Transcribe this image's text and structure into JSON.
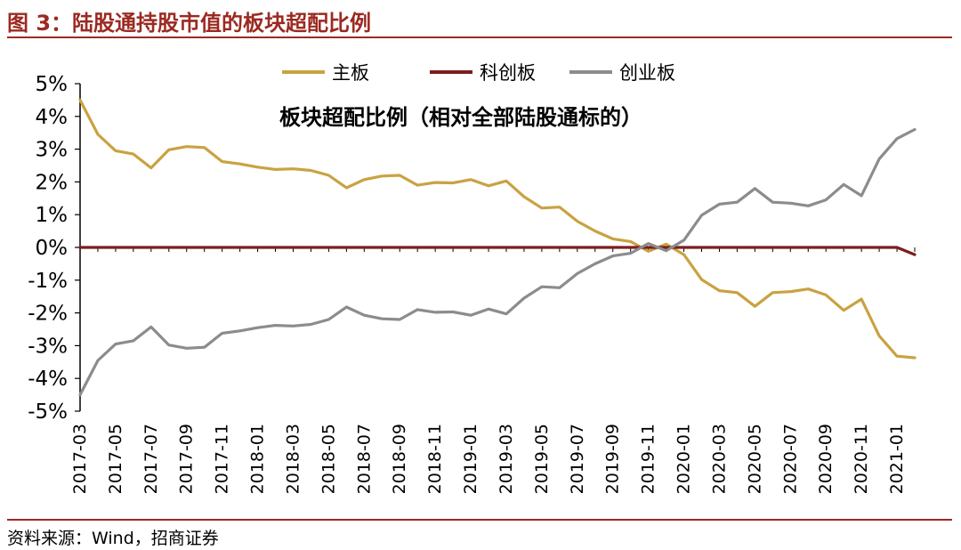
{
  "figure": {
    "title": "图 3：陆股通持股市值的板块超配比例",
    "source": "资料来源：Wind，招商证券"
  },
  "chart_data": {
    "type": "line",
    "title": "板块超配比例（相对全部陆股通标的）",
    "xlabel": "",
    "ylabel": "",
    "ylim": [
      -5,
      5
    ],
    "yticks": [
      "5%",
      "4%",
      "3%",
      "2%",
      "1%",
      "0%",
      "-1%",
      "-2%",
      "-3%",
      "-4%",
      "-5%"
    ],
    "grid": false,
    "legend_position": "top-center",
    "x": [
      "2017-03",
      "2017-04",
      "2017-05",
      "2017-06",
      "2017-07",
      "2017-08",
      "2017-09",
      "2017-10",
      "2017-11",
      "2017-12",
      "2018-01",
      "2018-02",
      "2018-03",
      "2018-04",
      "2018-05",
      "2018-06",
      "2018-07",
      "2018-08",
      "2018-09",
      "2018-10",
      "2018-11",
      "2018-12",
      "2019-01",
      "2019-02",
      "2019-03",
      "2019-04",
      "2019-05",
      "2019-06",
      "2019-07",
      "2019-08",
      "2019-09",
      "2019-10",
      "2019-11",
      "2019-12",
      "2020-01",
      "2020-02",
      "2020-03",
      "2020-04",
      "2020-05",
      "2020-06",
      "2020-07",
      "2020-08",
      "2020-09",
      "2020-10",
      "2020-11",
      "2020-12",
      "2021-01",
      "2021-02"
    ],
    "xtick_labels": [
      "2017-03",
      "2017-05",
      "2017-07",
      "2017-09",
      "2017-11",
      "2018-01",
      "2018-03",
      "2018-05",
      "2018-07",
      "2018-09",
      "2018-11",
      "2019-01",
      "2019-03",
      "2019-05",
      "2019-07",
      "2019-09",
      "2019-11",
      "2020-01",
      "2020-03",
      "2020-05",
      "2020-07",
      "2020-09",
      "2020-11",
      "2021-01"
    ],
    "series": [
      {
        "name": "主板",
        "color": "#C9A241",
        "values": [
          4.5,
          3.45,
          2.95,
          2.85,
          2.43,
          2.98,
          3.08,
          3.05,
          2.62,
          2.55,
          2.45,
          2.38,
          2.4,
          2.35,
          2.2,
          1.82,
          2.07,
          2.18,
          2.2,
          1.9,
          1.98,
          1.97,
          2.07,
          1.88,
          2.03,
          1.55,
          1.2,
          1.23,
          0.8,
          0.5,
          0.26,
          0.18,
          -0.12,
          0.1,
          -0.22,
          -0.98,
          -1.32,
          -1.38,
          -1.8,
          -1.38,
          -1.35,
          -1.27,
          -1.45,
          -1.92,
          -1.58,
          -2.7,
          -3.32,
          -3.37
        ]
      },
      {
        "name": "科创板",
        "color": "#7B1E1E",
        "values": [
          0,
          0,
          0,
          0,
          0,
          0,
          0,
          0,
          0,
          0,
          0,
          0,
          0,
          0,
          0,
          0,
          0,
          0,
          0,
          0,
          0,
          0,
          0,
          0,
          0,
          0,
          0,
          0,
          0,
          0,
          0,
          0,
          0,
          0,
          0,
          0,
          0,
          0,
          0,
          0,
          0,
          0,
          0,
          0,
          0,
          0,
          0,
          -0.22
        ]
      },
      {
        "name": "创业板",
        "color": "#8C8C8C",
        "values": [
          -4.5,
          -3.45,
          -2.95,
          -2.85,
          -2.43,
          -2.98,
          -3.08,
          -3.05,
          -2.62,
          -2.55,
          -2.45,
          -2.38,
          -2.4,
          -2.35,
          -2.2,
          -1.82,
          -2.07,
          -2.18,
          -2.2,
          -1.9,
          -1.98,
          -1.97,
          -2.07,
          -1.88,
          -2.03,
          -1.55,
          -1.2,
          -1.23,
          -0.8,
          -0.5,
          -0.26,
          -0.18,
          0.12,
          -0.1,
          0.22,
          0.98,
          1.32,
          1.38,
          1.8,
          1.38,
          1.35,
          1.27,
          1.45,
          1.92,
          1.58,
          2.7,
          3.32,
          3.6
        ]
      }
    ]
  }
}
